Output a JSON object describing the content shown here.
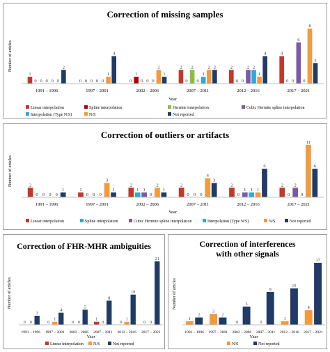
{
  "colors": {
    "linear": "#c0392b",
    "spline": "#b30000",
    "hermite": "#8cbd3f",
    "cubic_hermite": "#7a5aa6",
    "interp_type_ns": "#31a8d6",
    "ns": "#f39a3d",
    "not_reported": "#1f3b66"
  },
  "chart_data": [
    {
      "type": "bar",
      "title": "Correction of missing samples",
      "xlabel": "Year",
      "ylabel": "Number of articles",
      "ylim": [
        0,
        8
      ],
      "grid": false,
      "legend_position": "bottom",
      "categories": [
        "1991 – 1996",
        "1997 – 2001",
        "2002 – 2006",
        "2007 – 2011",
        "2012 – 2016",
        "2017 – 2021"
      ],
      "series": [
        {
          "name": "Linear interpolation",
          "color_key": "linear",
          "values": [
            1,
            0,
            0,
            2,
            2,
            4
          ]
        },
        {
          "name": "Spline interpolation",
          "color_key": "spline",
          "values": [
            0,
            0,
            1,
            0,
            0,
            0
          ]
        },
        {
          "name": "Hermite interpolation",
          "color_key": "hermite",
          "values": [
            0,
            0,
            0,
            2,
            0,
            0
          ]
        },
        {
          "name": "Cubic Hermite spline interpolation",
          "color_key": "cubic_hermite",
          "values": [
            0,
            0,
            0,
            0,
            2,
            6
          ]
        },
        {
          "name": "Interpolation (Type N/S)",
          "color_key": "interp_type_ns",
          "values": [
            0,
            0,
            0,
            1,
            2,
            0
          ]
        },
        {
          "name": "N/S",
          "color_key": "ns",
          "values": [
            0,
            1,
            2,
            2,
            1,
            8
          ]
        },
        {
          "name": "Not reported",
          "color_key": "not_reported",
          "values": [
            2,
            4,
            1,
            2,
            4,
            3
          ]
        }
      ]
    },
    {
      "type": "bar",
      "title": "Correction of outliers or artifacts",
      "xlabel": "Year",
      "ylabel": "Number of articles",
      "ylim": [
        0,
        11
      ],
      "grid": false,
      "legend_position": "bottom",
      "categories": [
        "1991 – 1996",
        "1997 – 2001",
        "2002 – 2006",
        "2007 – 2011",
        "2012 – 2016",
        "2017 – 2021"
      ],
      "series": [
        {
          "name": "Linear interpolation",
          "color_key": "linear",
          "values": [
            2,
            1,
            2,
            2,
            2,
            2
          ]
        },
        {
          "name": "Spline interpolation",
          "color_key": "interp_type_ns",
          "values": [
            0,
            0,
            1,
            0,
            0,
            0
          ]
        },
        {
          "name": "Cubic Hermite spline interpolation",
          "color_key": "cubic_hermite",
          "values": [
            0,
            0,
            1,
            0,
            1,
            2
          ]
        },
        {
          "name": "Interpolation (Type N/S)",
          "color_key": "interp_type_ns",
          "values": [
            0,
            0,
            0,
            0,
            1,
            0
          ]
        },
        {
          "name": "N/S",
          "color_key": "ns",
          "values": [
            0,
            3,
            2,
            4,
            1,
            11
          ]
        },
        {
          "name": "Not reported",
          "color_key": "not_reported",
          "values": [
            1,
            1,
            1,
            3,
            6,
            6
          ]
        }
      ]
    },
    {
      "type": "bar",
      "title": "Correction of FHR-MHR ambiguities",
      "xlabel": "Year",
      "ylabel": "Number of articles",
      "ylim": [
        0,
        21
      ],
      "grid": false,
      "legend_position": "bottom",
      "categories": [
        "1991 – 1996",
        "1997 – 2001",
        "2002 – 2006",
        "2007 – 2011",
        "2012 – 2016",
        "2017 – 2021"
      ],
      "series": [
        {
          "name": "Linear interpolation",
          "color_key": "linear",
          "values": [
            0,
            0,
            0,
            1,
            0,
            0
          ]
        },
        {
          "name": "N/S",
          "color_key": "ns",
          "values": [
            0,
            1,
            0,
            0,
            1,
            0
          ]
        },
        {
          "name": "Not reported",
          "color_key": "not_reported",
          "values": [
            3,
            4,
            5,
            8,
            10,
            21
          ]
        }
      ]
    },
    {
      "type": "bar",
      "title": "Correction of interferences with other signals",
      "title_lines": [
        "Correction of interferences",
        "with other signals"
      ],
      "xlabel": "Year",
      "ylabel": "Number of articles",
      "ylim": [
        0,
        17
      ],
      "grid": false,
      "legend_position": "bottom",
      "categories": [
        "1991 – 1996",
        "1997 – 2001",
        "2002 – 2006",
        "2007 – 2011",
        "2012 – 2016",
        "2017 – 2021"
      ],
      "series": [
        {
          "name": "N/S",
          "color_key": "ns",
          "values": [
            1,
            3,
            0,
            0,
            1,
            4
          ]
        },
        {
          "name": "Not reported",
          "color_key": "not_reported",
          "values": [
            2,
            2,
            5,
            9,
            10,
            17
          ]
        }
      ]
    }
  ]
}
